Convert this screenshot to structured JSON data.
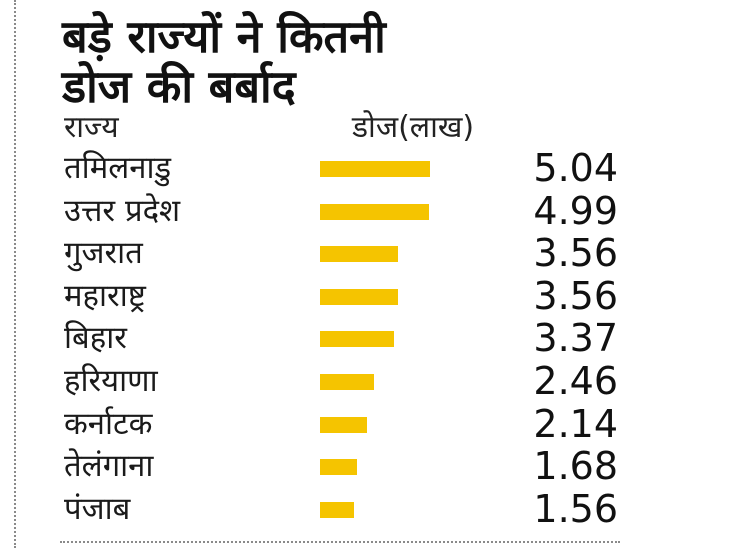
{
  "colors": {
    "bar": "#f5c400",
    "text": "#111111",
    "border": "#8a8a8a"
  },
  "chart_data": {
    "type": "bar",
    "orientation": "horizontal",
    "title_lines": [
      "बड़े राज्यों ने कितनी",
      "डोज की बर्बाद"
    ],
    "category_header": "राज्य",
    "value_header": "डोज(लाख)",
    "categories": [
      "तमिलनाडु",
      "उत्तर प्रदेश",
      "गुजरात",
      "महाराष्ट्र",
      "बिहार",
      "हरियाणा",
      "कर्नाटक",
      "तेलंगाना",
      "पंजाब"
    ],
    "values": [
      5.04,
      4.99,
      3.56,
      3.56,
      3.37,
      2.46,
      2.14,
      1.68,
      1.56
    ],
    "value_labels": [
      "5.04",
      "4.99",
      "3.56",
      "3.56",
      "3.37",
      "2.46",
      "2.14",
      "1.68",
      "1.56"
    ],
    "xlim": [
      0,
      5.04
    ],
    "grid": false,
    "legend": "none"
  }
}
